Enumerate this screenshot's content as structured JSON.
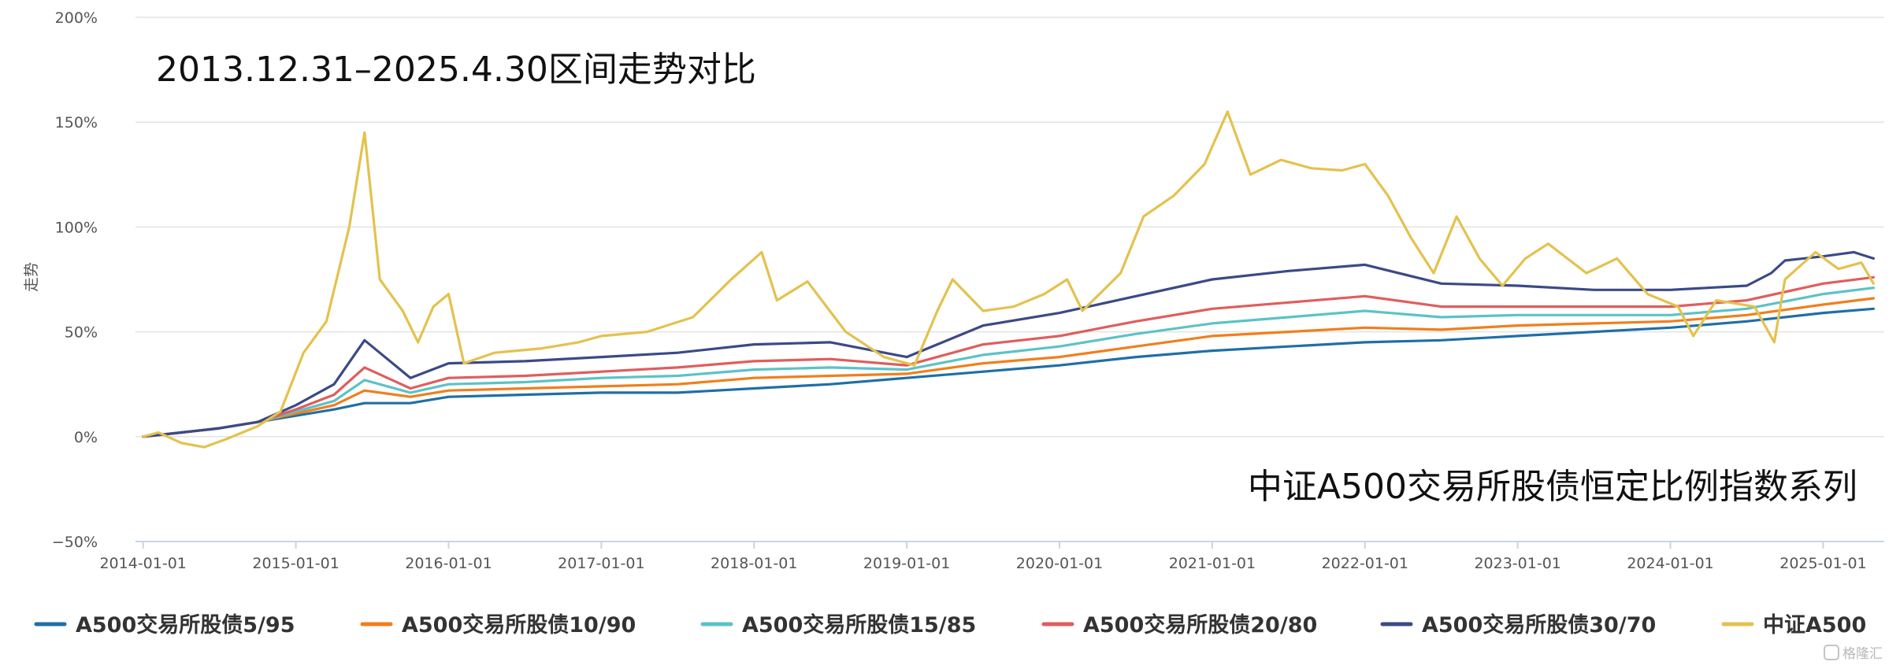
{
  "chart_data": {
    "type": "line",
    "title": "2013.12.31–2025.4.30区间走势对比",
    "annotation": "中证A500交易所股债恒定比例指数系列",
    "ylabel": "走势",
    "xlabel": "",
    "ylim": [
      -50,
      200
    ],
    "y_ticks": [
      {
        "value": -50,
        "label": "−50%"
      },
      {
        "value": 0,
        "label": "0%"
      },
      {
        "value": 50,
        "label": "50%"
      },
      {
        "value": 100,
        "label": "100%"
      },
      {
        "value": 150,
        "label": "150%"
      },
      {
        "value": 200,
        "label": "200%"
      }
    ],
    "xlim": [
      2013.95,
      2025.4
    ],
    "x_ticks": [
      {
        "value": 2014.0,
        "label": "2014-01-01"
      },
      {
        "value": 2015.0,
        "label": "2015-01-01"
      },
      {
        "value": 2016.0,
        "label": "2016-01-01"
      },
      {
        "value": 2017.0,
        "label": "2017-01-01"
      },
      {
        "value": 2018.0,
        "label": "2018-01-01"
      },
      {
        "value": 2019.0,
        "label": "2019-01-01"
      },
      {
        "value": 2020.0,
        "label": "2020-01-01"
      },
      {
        "value": 2021.0,
        "label": "2021-01-01"
      },
      {
        "value": 2022.0,
        "label": "2022-01-01"
      },
      {
        "value": 2023.0,
        "label": "2023-01-01"
      },
      {
        "value": 2024.0,
        "label": "2024-01-01"
      },
      {
        "value": 2025.0,
        "label": "2025-01-01"
      }
    ],
    "grid": "horizontal",
    "legend_position": "bottom",
    "series": [
      {
        "name": "A500交易所股债5/95",
        "color": "#1f6fa6",
        "points": [
          [
            2014.0,
            0
          ],
          [
            2014.25,
            2
          ],
          [
            2014.5,
            4
          ],
          [
            2014.75,
            7
          ],
          [
            2015.0,
            10
          ],
          [
            2015.25,
            13
          ],
          [
            2015.45,
            16
          ],
          [
            2015.75,
            16
          ],
          [
            2016.0,
            19
          ],
          [
            2016.5,
            20
          ],
          [
            2017.0,
            21
          ],
          [
            2017.5,
            21
          ],
          [
            2018.0,
            23
          ],
          [
            2018.5,
            25
          ],
          [
            2019.0,
            28
          ],
          [
            2019.5,
            31
          ],
          [
            2020.0,
            34
          ],
          [
            2020.5,
            38
          ],
          [
            2021.0,
            41
          ],
          [
            2021.5,
            43
          ],
          [
            2022.0,
            45
          ],
          [
            2022.5,
            46
          ],
          [
            2023.0,
            48
          ],
          [
            2023.5,
            50
          ],
          [
            2024.0,
            52
          ],
          [
            2024.5,
            55
          ],
          [
            2025.0,
            59
          ],
          [
            2025.33,
            61
          ]
        ]
      },
      {
        "name": "A500交易所股债10/90",
        "color": "#f07f1c",
        "points": [
          [
            2014.0,
            0
          ],
          [
            2014.25,
            2
          ],
          [
            2014.5,
            4
          ],
          [
            2014.75,
            7
          ],
          [
            2015.0,
            11
          ],
          [
            2015.25,
            15
          ],
          [
            2015.45,
            22
          ],
          [
            2015.75,
            19
          ],
          [
            2016.0,
            22
          ],
          [
            2016.5,
            23
          ],
          [
            2017.0,
            24
          ],
          [
            2017.5,
            25
          ],
          [
            2018.0,
            28
          ],
          [
            2018.5,
            29
          ],
          [
            2019.0,
            30
          ],
          [
            2019.5,
            35
          ],
          [
            2020.0,
            38
          ],
          [
            2020.5,
            43
          ],
          [
            2021.0,
            48
          ],
          [
            2021.5,
            50
          ],
          [
            2022.0,
            52
          ],
          [
            2022.5,
            51
          ],
          [
            2023.0,
            53
          ],
          [
            2023.5,
            54
          ],
          [
            2024.0,
            55
          ],
          [
            2024.5,
            58
          ],
          [
            2025.0,
            63
          ],
          [
            2025.33,
            66
          ]
        ]
      },
      {
        "name": "A500交易所股债15/85",
        "color": "#5cc2c6",
        "points": [
          [
            2014.0,
            0
          ],
          [
            2014.25,
            2
          ],
          [
            2014.5,
            4
          ],
          [
            2014.75,
            7
          ],
          [
            2015.0,
            12
          ],
          [
            2015.25,
            17
          ],
          [
            2015.45,
            27
          ],
          [
            2015.75,
            21
          ],
          [
            2016.0,
            25
          ],
          [
            2016.5,
            26
          ],
          [
            2017.0,
            28
          ],
          [
            2017.5,
            29
          ],
          [
            2018.0,
            32
          ],
          [
            2018.5,
            33
          ],
          [
            2019.0,
            32
          ],
          [
            2019.5,
            39
          ],
          [
            2020.0,
            43
          ],
          [
            2020.5,
            49
          ],
          [
            2021.0,
            54
          ],
          [
            2021.5,
            57
          ],
          [
            2022.0,
            60
          ],
          [
            2022.5,
            57
          ],
          [
            2023.0,
            58
          ],
          [
            2023.5,
            58
          ],
          [
            2024.0,
            58
          ],
          [
            2024.5,
            61
          ],
          [
            2025.0,
            68
          ],
          [
            2025.33,
            71
          ]
        ]
      },
      {
        "name": "A500交易所股债20/80",
        "color": "#e05d5d",
        "points": [
          [
            2014.0,
            0
          ],
          [
            2014.25,
            2
          ],
          [
            2014.5,
            4
          ],
          [
            2014.75,
            7
          ],
          [
            2015.0,
            13
          ],
          [
            2015.25,
            20
          ],
          [
            2015.45,
            33
          ],
          [
            2015.75,
            23
          ],
          [
            2016.0,
            28
          ],
          [
            2016.5,
            29
          ],
          [
            2017.0,
            31
          ],
          [
            2017.5,
            33
          ],
          [
            2018.0,
            36
          ],
          [
            2018.5,
            37
          ],
          [
            2019.0,
            34
          ],
          [
            2019.5,
            44
          ],
          [
            2020.0,
            48
          ],
          [
            2020.5,
            55
          ],
          [
            2021.0,
            61
          ],
          [
            2021.5,
            64
          ],
          [
            2022.0,
            67
          ],
          [
            2022.5,
            62
          ],
          [
            2023.0,
            62
          ],
          [
            2023.5,
            62
          ],
          [
            2024.0,
            62
          ],
          [
            2024.5,
            65
          ],
          [
            2025.0,
            73
          ],
          [
            2025.33,
            76
          ]
        ]
      },
      {
        "name": "A500交易所股债30/70",
        "color": "#3b4a86",
        "points": [
          [
            2014.0,
            0
          ],
          [
            2014.25,
            2
          ],
          [
            2014.5,
            4
          ],
          [
            2014.75,
            7
          ],
          [
            2015.0,
            15
          ],
          [
            2015.25,
            25
          ],
          [
            2015.45,
            46
          ],
          [
            2015.75,
            28
          ],
          [
            2016.0,
            35
          ],
          [
            2016.5,
            36
          ],
          [
            2017.0,
            38
          ],
          [
            2017.5,
            40
          ],
          [
            2018.0,
            44
          ],
          [
            2018.5,
            45
          ],
          [
            2019.0,
            38
          ],
          [
            2019.5,
            53
          ],
          [
            2020.0,
            59
          ],
          [
            2020.5,
            67
          ],
          [
            2021.0,
            75
          ],
          [
            2021.5,
            79
          ],
          [
            2022.0,
            82
          ],
          [
            2022.5,
            73
          ],
          [
            2023.0,
            72
          ],
          [
            2023.5,
            70
          ],
          [
            2024.0,
            70
          ],
          [
            2024.5,
            72
          ],
          [
            2024.66,
            78
          ],
          [
            2024.75,
            84
          ],
          [
            2025.0,
            86
          ],
          [
            2025.2,
            88
          ],
          [
            2025.33,
            85
          ]
        ]
      },
      {
        "name": "中证A500",
        "color": "#e3c24e",
        "points": [
          [
            2014.0,
            0
          ],
          [
            2014.1,
            2
          ],
          [
            2014.25,
            -3
          ],
          [
            2014.4,
            -5
          ],
          [
            2014.55,
            -1
          ],
          [
            2014.75,
            5
          ],
          [
            2014.9,
            12
          ],
          [
            2015.05,
            40
          ],
          [
            2015.2,
            55
          ],
          [
            2015.35,
            100
          ],
          [
            2015.45,
            145
          ],
          [
            2015.55,
            75
          ],
          [
            2015.7,
            60
          ],
          [
            2015.8,
            45
          ],
          [
            2015.9,
            62
          ],
          [
            2016.0,
            68
          ],
          [
            2016.1,
            35
          ],
          [
            2016.3,
            40
          ],
          [
            2016.6,
            42
          ],
          [
            2016.85,
            45
          ],
          [
            2017.0,
            48
          ],
          [
            2017.3,
            50
          ],
          [
            2017.6,
            57
          ],
          [
            2017.85,
            75
          ],
          [
            2018.05,
            88
          ],
          [
            2018.15,
            65
          ],
          [
            2018.35,
            74
          ],
          [
            2018.6,
            50
          ],
          [
            2018.85,
            38
          ],
          [
            2019.05,
            34
          ],
          [
            2019.2,
            60
          ],
          [
            2019.3,
            75
          ],
          [
            2019.5,
            60
          ],
          [
            2019.7,
            62
          ],
          [
            2019.9,
            68
          ],
          [
            2020.05,
            75
          ],
          [
            2020.15,
            60
          ],
          [
            2020.4,
            78
          ],
          [
            2020.55,
            105
          ],
          [
            2020.75,
            115
          ],
          [
            2020.95,
            130
          ],
          [
            2021.1,
            155
          ],
          [
            2021.25,
            125
          ],
          [
            2021.45,
            132
          ],
          [
            2021.65,
            128
          ],
          [
            2021.85,
            127
          ],
          [
            2022.0,
            130
          ],
          [
            2022.15,
            115
          ],
          [
            2022.3,
            95
          ],
          [
            2022.45,
            78
          ],
          [
            2022.6,
            105
          ],
          [
            2022.75,
            85
          ],
          [
            2022.9,
            72
          ],
          [
            2023.05,
            85
          ],
          [
            2023.2,
            92
          ],
          [
            2023.45,
            78
          ],
          [
            2023.65,
            85
          ],
          [
            2023.85,
            68
          ],
          [
            2024.05,
            62
          ],
          [
            2024.15,
            48
          ],
          [
            2024.3,
            65
          ],
          [
            2024.55,
            62
          ],
          [
            2024.68,
            45
          ],
          [
            2024.75,
            75
          ],
          [
            2024.95,
            88
          ],
          [
            2025.1,
            80
          ],
          [
            2025.25,
            83
          ],
          [
            2025.33,
            73
          ]
        ]
      }
    ]
  },
  "watermark": "格隆汇"
}
